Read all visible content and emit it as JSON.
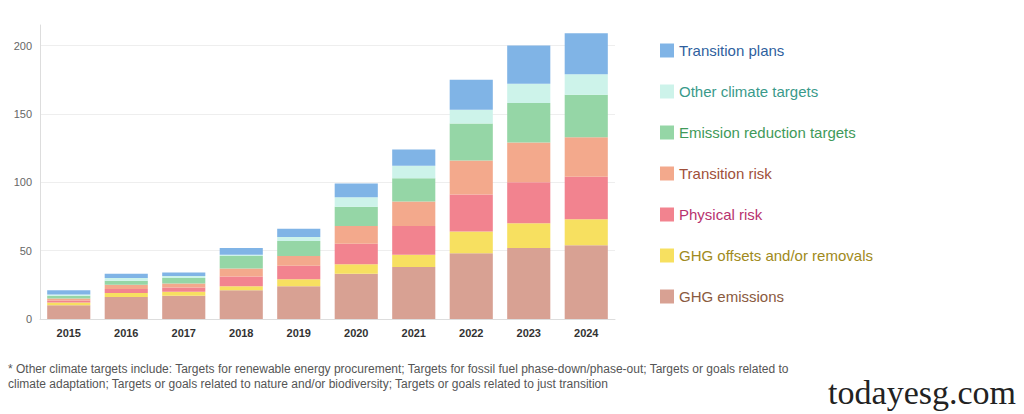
{
  "chart_data": {
    "type": "bar",
    "stacked": true,
    "categories": [
      "2015",
      "2016",
      "2017",
      "2018",
      "2019",
      "2020",
      "2021",
      "2022",
      "2023",
      "2024"
    ],
    "series": [
      {
        "name": "GHG emissions",
        "color": "#d8a193",
        "values": [
          10,
          16,
          17,
          21,
          24,
          33,
          38,
          48,
          52,
          54
        ]
      },
      {
        "name": "GHG offsets and/or removals",
        "color": "#f7e060",
        "values": [
          2,
          3,
          3,
          3,
          5,
          7,
          9,
          16,
          18,
          19
        ]
      },
      {
        "name": "Physical risk",
        "color": "#f2838f",
        "values": [
          1.5,
          3,
          3,
          7,
          10,
          15,
          21,
          27,
          30,
          31
        ]
      },
      {
        "name": "Transition risk",
        "color": "#f3a98c",
        "values": [
          1.5,
          3,
          3,
          6,
          7,
          13,
          18,
          25,
          29,
          29
        ]
      },
      {
        "name": "Emission reduction targets",
        "color": "#95d6a6",
        "values": [
          2,
          3,
          4,
          9,
          11,
          14,
          17,
          27,
          29,
          31
        ]
      },
      {
        "name": "Other climate targets",
        "color": "#cdf3ea",
        "values": [
          1,
          2,
          1.5,
          1,
          3,
          7,
          9,
          10,
          14,
          15
        ]
      },
      {
        "name": "Transition plans",
        "color": "#80b4e6",
        "values": [
          3,
          3,
          2.5,
          5,
          6,
          10,
          12,
          22,
          28,
          30
        ]
      }
    ],
    "ylim": [
      0,
      215
    ],
    "yticks": [
      0,
      50,
      100,
      150,
      200
    ],
    "grid": true,
    "legend": "right",
    "annotations": [
      "* Other climate targets include: Targets for renewable energy procurement; Targets for fossil fuel phase-down/phase-out; Targets or goals related to climate adaptation; Targets or goals related to nature and/or biodiversity; Targets or goals related to just transition",
      "todayesg.com"
    ]
  }
}
